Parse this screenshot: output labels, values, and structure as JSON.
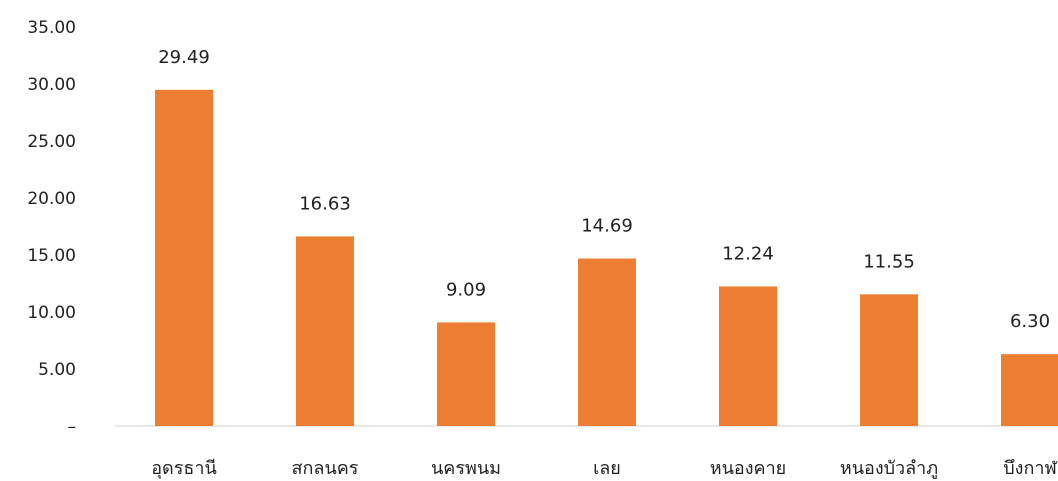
{
  "chart_data": {
    "type": "bar",
    "categories": [
      "อุดรธานี",
      "สกลนคร",
      "นครพนม",
      "เลย",
      "หนองคาย",
      "หนองบัวลำภู",
      "บึงกาฬ"
    ],
    "values": [
      29.49,
      16.63,
      9.09,
      14.69,
      12.24,
      11.55,
      6.3
    ],
    "data_labels": [
      "29.49",
      "16.63",
      "9.09",
      "14.69",
      "12.24",
      "11.55",
      "6.30"
    ],
    "yticks": [
      "–",
      "5.00",
      "10.00",
      "15.00",
      "20.00",
      "25.00",
      "30.00",
      "35.00"
    ],
    "ylim": [
      0,
      35
    ],
    "title": "",
    "xlabel": "",
    "ylabel": "",
    "grid": false,
    "legend": "none",
    "bar_color": "#ED7D31"
  }
}
